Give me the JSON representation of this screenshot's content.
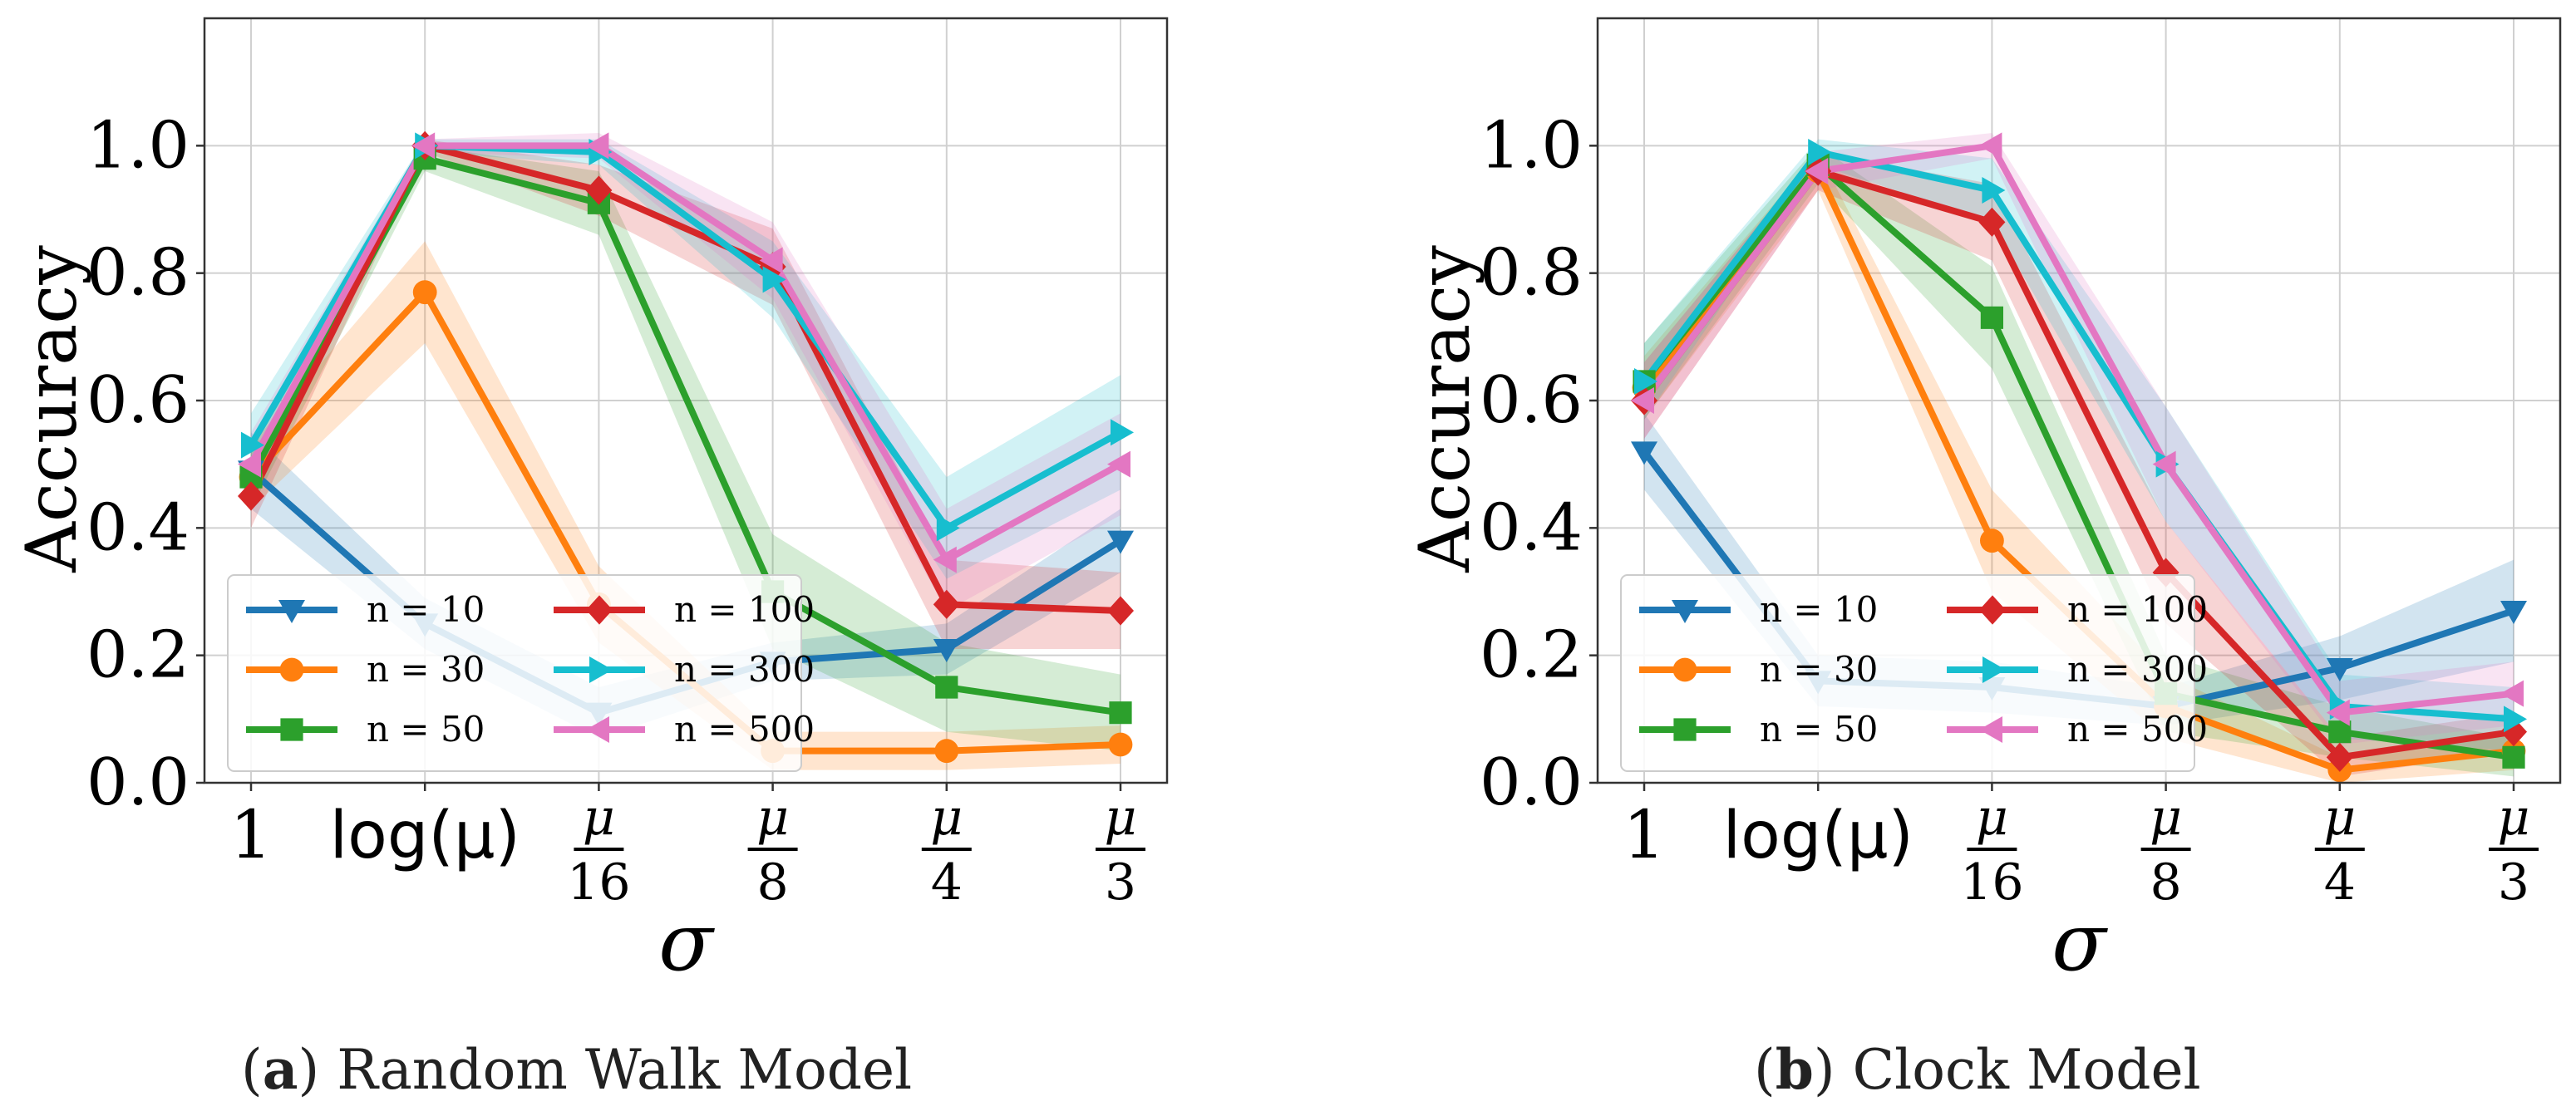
{
  "colors": {
    "n10": "#1f77b4",
    "n30": "#ff7f0e",
    "n50": "#2ca02c",
    "n100": "#d62728",
    "n300": "#17becf",
    "n500": "#e377c2"
  },
  "markers": {
    "n10": "triangle-down",
    "n30": "circle",
    "n50": "square",
    "n100": "diamond",
    "n300": "triangle-right",
    "n500": "triangle-left"
  },
  "chart_data": [
    {
      "type": "line",
      "panel_letter": "a",
      "caption": "Random Walk Model",
      "xlabel": "σ",
      "ylabel": "Accuracy",
      "ylim": [
        0.0,
        1.2
      ],
      "yticks": [
        "0.0",
        "0.2",
        "0.4",
        "0.6",
        "0.8",
        "1.0"
      ],
      "categories": [
        {
          "label": "1"
        },
        {
          "label": "log(μ)"
        },
        {
          "num": "μ",
          "den": "16"
        },
        {
          "num": "μ",
          "den": "8"
        },
        {
          "num": "μ",
          "den": "4"
        },
        {
          "num": "μ",
          "den": "3"
        }
      ],
      "legend": {
        "location": "lower-left",
        "columns": 2
      },
      "series": [
        {
          "name": "n = 10",
          "key": "n10",
          "values": [
            0.49,
            0.25,
            0.11,
            0.19,
            0.21,
            0.38
          ],
          "band": [
            0.06,
            0.04,
            0.04,
            0.03,
            0.04,
            0.05
          ]
        },
        {
          "name": "n = 30",
          "key": "n30",
          "values": [
            0.48,
            0.77,
            0.28,
            0.05,
            0.05,
            0.06
          ],
          "band": [
            0.05,
            0.08,
            0.06,
            0.03,
            0.03,
            0.03
          ]
        },
        {
          "name": "n = 50",
          "key": "n50",
          "values": [
            0.48,
            0.98,
            0.91,
            0.3,
            0.15,
            0.11
          ],
          "band": [
            0.05,
            0.02,
            0.05,
            0.09,
            0.07,
            0.06
          ]
        },
        {
          "name": "n = 100",
          "key": "n100",
          "values": [
            0.45,
            1.0,
            0.93,
            0.81,
            0.28,
            0.27
          ],
          "band": [
            0.05,
            0.01,
            0.04,
            0.06,
            0.07,
            0.06
          ]
        },
        {
          "name": "n = 300",
          "key": "n300",
          "values": [
            0.53,
            1.0,
            0.99,
            0.79,
            0.4,
            0.55
          ],
          "band": [
            0.05,
            0.01,
            0.02,
            0.06,
            0.08,
            0.09
          ]
        },
        {
          "name": "n = 500",
          "key": "n500",
          "values": [
            0.5,
            1.0,
            1.0,
            0.82,
            0.35,
            0.5
          ],
          "band": [
            0.05,
            0.01,
            0.02,
            0.06,
            0.08,
            0.08
          ]
        }
      ]
    },
    {
      "type": "line",
      "panel_letter": "b",
      "caption": "Clock Model",
      "xlabel": "σ",
      "ylabel": "Accuracy",
      "ylim": [
        0.0,
        1.2
      ],
      "yticks": [
        "0.0",
        "0.2",
        "0.4",
        "0.6",
        "0.8",
        "1.0"
      ],
      "categories": [
        {
          "label": "1"
        },
        {
          "label": "log(μ)"
        },
        {
          "num": "μ",
          "den": "16"
        },
        {
          "num": "μ",
          "den": "8"
        },
        {
          "num": "μ",
          "den": "4"
        },
        {
          "num": "μ",
          "den": "3"
        }
      ],
      "legend": {
        "location": "lower-left",
        "columns": 2
      },
      "series": [
        {
          "name": "n = 10",
          "key": "n10",
          "values": [
            0.52,
            0.16,
            0.15,
            0.12,
            0.18,
            0.27
          ],
          "band": [
            0.06,
            0.04,
            0.04,
            0.03,
            0.05,
            0.08
          ]
        },
        {
          "name": "n = 30",
          "key": "n30",
          "values": [
            0.62,
            0.96,
            0.38,
            0.12,
            0.02,
            0.05
          ],
          "band": [
            0.05,
            0.03,
            0.08,
            0.05,
            0.02,
            0.03
          ]
        },
        {
          "name": "n = 50",
          "key": "n50",
          "values": [
            0.63,
            0.97,
            0.73,
            0.14,
            0.08,
            0.04
          ],
          "band": [
            0.06,
            0.03,
            0.08,
            0.06,
            0.04,
            0.03
          ]
        },
        {
          "name": "n = 100",
          "key": "n100",
          "values": [
            0.6,
            0.96,
            0.88,
            0.33,
            0.04,
            0.08
          ],
          "band": [
            0.06,
            0.03,
            0.06,
            0.08,
            0.03,
            0.03
          ]
        },
        {
          "name": "n = 300",
          "key": "n300",
          "values": [
            0.63,
            0.99,
            0.93,
            0.5,
            0.12,
            0.1
          ],
          "band": [
            0.06,
            0.02,
            0.05,
            0.09,
            0.05,
            0.05
          ]
        },
        {
          "name": "n = 500",
          "key": "n500",
          "values": [
            0.6,
            0.96,
            1.0,
            0.5,
            0.11,
            0.14
          ],
          "band": [
            0.06,
            0.03,
            0.02,
            0.09,
            0.05,
            0.05
          ]
        }
      ]
    }
  ]
}
